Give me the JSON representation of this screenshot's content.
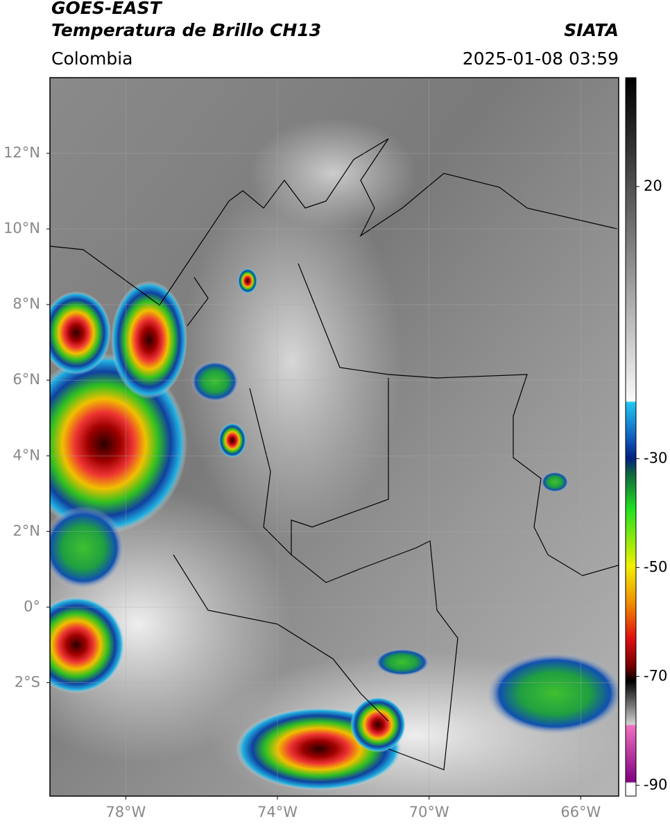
{
  "header": {
    "title": "GOES-EAST",
    "subtitle": "Temperatura de Brillo CH13",
    "region": "Colombia",
    "source": "SIATA",
    "timestamp": "2025-01-08 03:59"
  },
  "map": {
    "xlim": [
      -80,
      -65
    ],
    "ylim": [
      -5,
      14
    ],
    "xticks": [
      {
        "value": -78,
        "label": "78°W"
      },
      {
        "value": -74,
        "label": "74°W"
      },
      {
        "value": -70,
        "label": "70°W"
      },
      {
        "value": -66,
        "label": "66°W"
      }
    ],
    "yticks": [
      {
        "value": 12,
        "label": "12°N"
      },
      {
        "value": 10,
        "label": "10°N"
      },
      {
        "value": 8,
        "label": "8°N"
      },
      {
        "value": 6,
        "label": "6°N"
      },
      {
        "value": 4,
        "label": "4°N"
      },
      {
        "value": 2,
        "label": "2°N"
      },
      {
        "value": 0,
        "label": "0°"
      },
      {
        "value": -2,
        "label": "2°S"
      }
    ],
    "grid": true
  },
  "colorbar": {
    "lim": [
      -92,
      40
    ],
    "ticks": [
      20,
      -30,
      -50,
      -70,
      -90
    ]
  }
}
